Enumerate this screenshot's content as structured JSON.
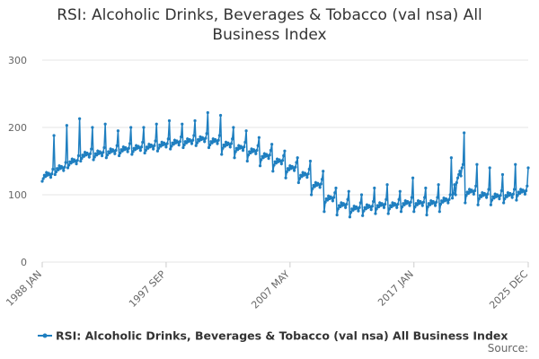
{
  "chart_data": {
    "type": "line",
    "title": "RSI: Alcoholic Drinks, Beverages & Tobacco (val nsa) All Business Index",
    "source": "Source:",
    "categories": [
      "1988 JAN",
      null,
      null,
      null,
      null,
      null,
      null,
      null,
      null,
      null,
      null,
      null,
      null,
      null,
      null,
      null,
      null,
      null,
      null,
      null,
      null,
      null,
      null,
      null,
      null,
      null,
      null,
      null,
      null,
      null,
      null,
      null,
      null,
      null,
      null,
      null,
      null,
      null,
      null,
      null,
      null,
      null,
      null,
      null,
      null,
      null,
      null,
      null,
      null,
      null,
      null,
      null,
      null,
      null,
      null,
      null,
      null,
      null,
      null,
      null,
      null,
      null,
      null,
      null,
      null,
      null,
      null,
      null,
      null,
      null,
      null,
      null,
      null,
      null,
      null,
      null,
      null,
      null,
      null,
      null,
      null,
      null,
      null,
      null,
      null,
      null,
      null,
      null,
      null,
      null,
      null,
      null,
      null,
      null,
      null,
      null,
      null,
      null,
      null,
      null,
      null,
      null,
      null,
      null,
      null,
      null,
      null,
      null,
      null,
      null,
      null,
      null,
      null,
      null,
      null,
      null,
      "1997 SEP",
      null,
      null,
      null,
      null,
      null,
      null,
      null,
      null,
      null,
      null,
      null,
      null,
      null,
      null,
      null,
      null,
      null,
      null,
      null,
      null,
      null,
      null,
      null,
      null,
      null,
      null,
      null,
      null,
      null,
      null,
      null,
      null,
      null,
      null,
      null,
      null,
      null,
      null,
      null,
      null,
      null,
      null,
      null,
      null,
      null,
      null,
      null,
      null,
      null,
      null,
      null,
      null,
      null,
      null,
      null,
      null,
      null,
      null,
      null,
      null,
      null,
      null,
      null,
      null,
      null,
      null,
      null,
      null,
      null,
      null,
      null,
      null,
      null,
      null,
      null,
      null,
      null,
      null,
      null,
      null,
      null,
      null,
      null,
      null,
      null,
      null,
      null,
      null,
      null,
      null,
      null,
      null,
      null,
      null,
      null,
      null,
      null,
      null,
      null,
      null,
      null,
      null,
      null,
      null,
      null,
      null,
      null,
      null,
      null,
      null,
      null,
      null,
      null,
      null,
      null,
      "2007 MAY",
      null,
      null,
      null,
      null,
      null,
      null,
      null,
      null,
      null,
      null,
      null,
      null,
      null,
      null,
      null,
      null,
      null,
      null,
      null,
      null,
      null,
      null,
      null,
      null,
      null,
      null,
      null,
      null,
      null,
      null,
      null,
      null,
      null,
      null,
      null,
      null,
      null,
      null,
      null,
      null,
      null,
      null,
      null,
      null,
      null,
      null,
      null,
      null,
      null,
      null,
      null,
      null,
      null,
      null,
      null,
      null,
      null,
      null,
      null,
      null,
      null,
      null,
      null,
      null,
      null,
      null,
      null,
      null,
      null,
      null,
      null,
      null,
      null,
      null,
      null,
      null,
      null,
      null,
      null,
      null,
      null,
      null,
      null,
      null,
      null,
      null,
      null,
      null,
      null,
      null,
      null,
      null,
      null,
      null,
      null,
      null,
      null,
      null,
      null,
      null,
      null,
      null,
      null,
      null,
      null,
      null,
      null,
      null,
      null,
      null,
      null,
      null,
      null,
      null,
      null,
      "2017 JAN",
      null,
      null,
      null,
      null,
      null,
      null,
      null,
      null,
      null,
      null,
      null,
      null,
      null,
      null,
      null,
      null,
      null,
      null,
      null,
      null,
      null,
      null,
      null,
      null,
      null,
      null,
      null,
      null,
      null,
      null,
      null,
      null,
      null,
      null,
      null,
      null,
      null,
      null,
      null,
      null,
      null,
      null,
      null,
      null,
      null,
      null,
      null,
      null,
      null,
      null,
      null,
      null,
      null,
      null,
      null,
      null,
      null,
      null,
      null,
      null,
      null,
      null,
      null,
      null,
      null,
      null,
      null,
      null,
      null,
      null,
      null,
      null,
      null,
      null,
      null,
      null,
      null,
      null,
      null,
      null,
      null,
      null,
      null,
      null,
      null,
      null,
      null,
      null,
      null,
      null,
      null,
      null,
      null,
      null,
      null,
      null,
      null,
      null,
      null,
      null,
      null,
      null,
      null,
      null,
      null,
      null,
      "2025 DEC"
    ],
    "series": [
      {
        "name": "RSI: Alcoholic Drinks, Beverages & Tobacco (val nsa) All Business Index",
        "color": "#1f7fc0",
        "values": [
          120,
          124,
          129,
          127,
          133,
          129,
          132,
          130,
          126,
          131,
          138,
          188,
          130,
          134,
          139,
          137,
          143,
          139,
          142,
          140,
          136,
          141,
          148,
          203,
          140,
          144,
          149,
          147,
          153,
          149,
          152,
          150,
          146,
          151,
          158,
          213,
          150,
          154,
          159,
          157,
          163,
          159,
          162,
          160,
          156,
          161,
          168,
          200,
          152,
          156,
          161,
          159,
          165,
          161,
          164,
          162,
          158,
          163,
          170,
          205,
          155,
          159,
          164,
          162,
          168,
          164,
          167,
          165,
          161,
          166,
          173,
          195,
          158,
          162,
          167,
          165,
          171,
          167,
          170,
          168,
          164,
          169,
          176,
          200,
          160,
          164,
          169,
          167,
          173,
          169,
          172,
          170,
          166,
          171,
          178,
          200,
          162,
          166,
          171,
          169,
          175,
          171,
          174,
          172,
          168,
          173,
          180,
          205,
          165,
          169,
          174,
          172,
          178,
          174,
          177,
          175,
          171,
          176,
          183,
          210,
          168,
          172,
          177,
          175,
          181,
          177,
          180,
          178,
          174,
          179,
          186,
          205,
          170,
          174,
          179,
          177,
          183,
          179,
          182,
          180,
          176,
          181,
          188,
          210,
          173,
          177,
          182,
          180,
          186,
          182,
          185,
          183,
          179,
          184,
          191,
          222,
          170,
          174,
          179,
          177,
          183,
          179,
          182,
          180,
          176,
          181,
          188,
          218,
          160,
          169,
          174,
          172,
          178,
          174,
          177,
          175,
          171,
          176,
          183,
          200,
          155,
          164,
          169,
          167,
          173,
          169,
          172,
          170,
          166,
          171,
          178,
          195,
          150,
          159,
          164,
          162,
          168,
          164,
          167,
          165,
          161,
          166,
          173,
          185,
          143,
          152,
          157,
          155,
          161,
          157,
          160,
          158,
          154,
          159,
          166,
          175,
          135,
          144,
          149,
          147,
          153,
          149,
          152,
          150,
          146,
          151,
          158,
          165,
          125,
          134,
          139,
          137,
          143,
          139,
          142,
          140,
          136,
          141,
          148,
          155,
          118,
          124,
          129,
          127,
          133,
          129,
          132,
          130,
          126,
          131,
          138,
          150,
          100,
          109,
          114,
          112,
          118,
          114,
          117,
          115,
          111,
          116,
          123,
          135,
          75,
          89,
          94,
          92,
          98,
          94,
          97,
          95,
          91,
          96,
          103,
          110,
          70,
          79,
          84,
          82,
          88,
          84,
          87,
          85,
          81,
          86,
          93,
          105,
          67,
          74,
          79,
          77,
          83,
          79,
          82,
          80,
          76,
          81,
          88,
          100,
          69,
          76,
          81,
          79,
          85,
          81,
          84,
          82,
          78,
          83,
          90,
          110,
          72,
          79,
          84,
          82,
          88,
          84,
          87,
          85,
          81,
          86,
          93,
          115,
          72,
          79,
          84,
          82,
          88,
          84,
          87,
          85,
          81,
          86,
          93,
          105,
          75,
          82,
          87,
          85,
          91,
          87,
          90,
          88,
          84,
          89,
          96,
          125,
          75,
          82,
          87,
          85,
          91,
          87,
          90,
          88,
          84,
          89,
          96,
          110,
          70,
          82,
          87,
          85,
          91,
          87,
          90,
          88,
          84,
          89,
          96,
          115,
          75,
          86,
          91,
          89,
          95,
          91,
          94,
          92,
          88,
          93,
          100,
          155,
          95,
          102,
          115,
          100,
          118,
          125,
          130,
          135,
          128,
          140,
          145,
          192,
          88,
          99,
          104,
          102,
          108,
          104,
          107,
          105,
          101,
          106,
          113,
          145,
          85,
          94,
          99,
          97,
          103,
          99,
          102,
          100,
          96,
          101,
          108,
          140,
          85,
          92,
          97,
          95,
          101,
          97,
          100,
          98,
          94,
          99,
          106,
          130,
          88,
          94,
          99,
          97,
          103,
          99,
          102,
          100,
          96,
          101,
          108,
          145,
          92,
          99,
          104,
          102,
          108,
          104,
          107,
          105,
          101,
          106,
          113,
          140
        ]
      }
    ],
    "ylim": [
      0,
      300
    ],
    "yticks": [
      0,
      100,
      200,
      300
    ],
    "grid": true,
    "legend": "bottom"
  }
}
